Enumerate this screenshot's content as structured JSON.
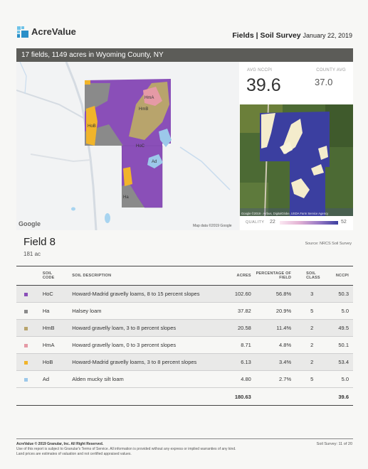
{
  "header": {
    "logo": "AcreValue",
    "section": "Fields | Soil Survey",
    "date": "January 22, 2019"
  },
  "banner": "17 fields, 1149 acres in Wyoming County, NY",
  "map": {
    "attribution": "Map data ©2019 Google",
    "watermark": "Google",
    "labels": [
      "HmA",
      "HmB",
      "HoB",
      "HoC",
      "Ad",
      "Ha"
    ]
  },
  "stats": {
    "avg_label": "AVG NCCPI",
    "avg_value": "39.6",
    "county_label": "COUNTY AVG",
    "county_value": "37.0"
  },
  "satellite": {
    "attribution": "Google  ©2019 · Airbus, DigitalGlobe, USDA Farm Service Agency"
  },
  "quality": {
    "label": "QUALITY",
    "min": "22",
    "max": "52",
    "gradient_start": "#fbe8f2",
    "gradient_end": "#3b3fa0"
  },
  "field": {
    "title": "Field 8",
    "acres": "181 ac",
    "source": "Source: NRCS Soil Survey"
  },
  "table": {
    "headers": {
      "code1": "SOIL",
      "code2": "CODE",
      "desc": "SOIL DESCRIPTION",
      "acres": "ACRES",
      "pct1": "PERCENTAGE OF",
      "pct2": "FIELD",
      "cls1": "SOIL",
      "cls2": "CLASS",
      "nccpi": "NCCPI"
    },
    "rows": [
      {
        "color": "#8a4fb8",
        "code": "HoC",
        "desc": "Howard-Madrid gravelly loams, 8 to 15 percent slopes",
        "acres": "102.60",
        "pct": "56.8%",
        "cls": "3",
        "nccpi": "50.3"
      },
      {
        "color": "#8a8a8a",
        "code": "Ha",
        "desc": "Halsey loam",
        "acres": "37.82",
        "pct": "20.9%",
        "cls": "5",
        "nccpi": "5.0"
      },
      {
        "color": "#b8a46c",
        "code": "HmB",
        "desc": "Howard gravelly loam, 3 to 8 percent slopes",
        "acres": "20.58",
        "pct": "11.4%",
        "cls": "2",
        "nccpi": "49.5"
      },
      {
        "color": "#e59aa6",
        "code": "HmA",
        "desc": "Howard gravelly loam, 0 to 3 percent slopes",
        "acres": "8.71",
        "pct": "4.8%",
        "cls": "2",
        "nccpi": "50.1"
      },
      {
        "color": "#f1b42a",
        "code": "HoB",
        "desc": "Howard-Madrid gravelly loams, 3 to 8 percent slopes",
        "acres": "6.13",
        "pct": "3.4%",
        "cls": "2",
        "nccpi": "53.4"
      },
      {
        "color": "#9cc8ea",
        "code": "Ad",
        "desc": "Alden mucky silt loam",
        "acres": "4.80",
        "pct": "2.7%",
        "cls": "5",
        "nccpi": "5.0"
      }
    ],
    "total_acres": "180.63",
    "total_nccpi": "39.6"
  },
  "footer": {
    "copyright": "AcreValue © 2019 Granular, Inc. All Right Reserved.",
    "line2": "Use of this report is subject to Granular's Terms of Service. All information is provided without any express or implied warranties of any kind.",
    "line3": "Land prices are estimates of valuation and not certified appraised values.",
    "page": "Soil Survey: 11 of 20"
  }
}
